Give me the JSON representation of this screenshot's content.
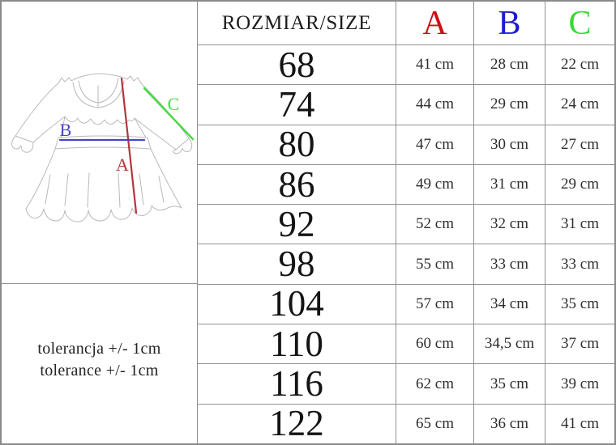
{
  "table": {
    "header": {
      "size": "ROZMIAR/SIZE",
      "a": "A",
      "b": "B",
      "c": "C"
    },
    "rows": [
      {
        "size": "68",
        "a": "41 cm",
        "b": "28 cm",
        "c": "22 cm"
      },
      {
        "size": "74",
        "a": "44 cm",
        "b": "29 cm",
        "c": "24 cm"
      },
      {
        "size": "80",
        "a": "47 cm",
        "b": "30 cm",
        "c": "27 cm"
      },
      {
        "size": "86",
        "a": "49 cm",
        "b": "31 cm",
        "c": "29 cm"
      },
      {
        "size": "92",
        "a": "52 cm",
        "b": "32 cm",
        "c": "31 cm"
      },
      {
        "size": "98",
        "a": "55 cm",
        "b": "33 cm",
        "c": "33 cm"
      },
      {
        "size": "104",
        "a": "57 cm",
        "b": "34 cm",
        "c": "35 cm"
      },
      {
        "size": "110",
        "a": "60 cm",
        "b": "34,5 cm",
        "c": "37 cm"
      },
      {
        "size": "116",
        "a": "62 cm",
        "b": "35 cm",
        "c": "39 cm"
      },
      {
        "size": "122",
        "a": "65 cm",
        "b": "36 cm",
        "c": "41 cm"
      }
    ]
  },
  "tolerance": {
    "line1": "tolerancja +/- 1cm",
    "line2": "tolerance +/- 1cm"
  },
  "diagram": {
    "label_a": "A",
    "label_b": "B",
    "label_c": "C"
  },
  "colors": {
    "header_a": "#cc1111",
    "header_b": "#1c1ccc",
    "header_c": "#35d935",
    "line_a": "#b5343a",
    "line_b": "#4646cb",
    "line_c": "#4ad94a"
  }
}
